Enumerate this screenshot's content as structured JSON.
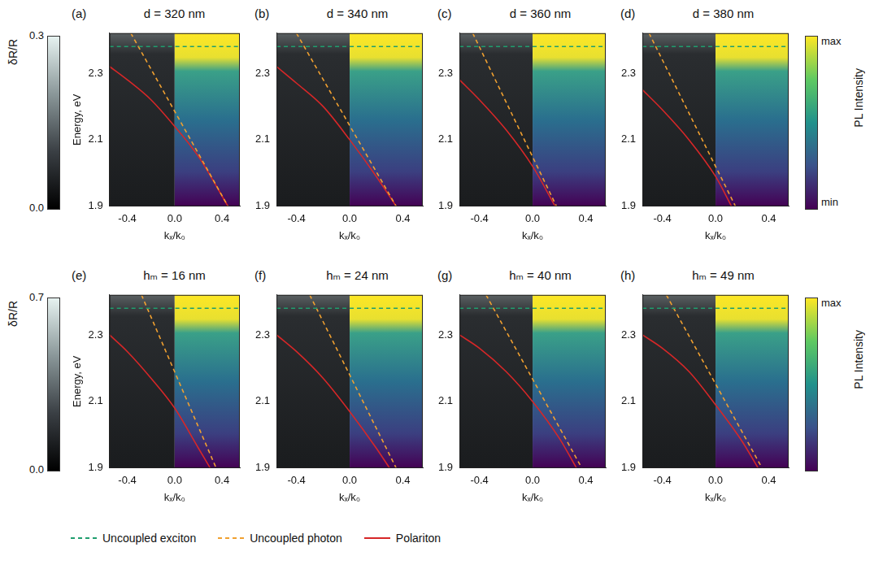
{
  "chart_data": [
    {
      "type": "line",
      "letter": "(a)",
      "title": "d = 320 nm",
      "x_label": "kₓ/k₀",
      "y_label": "Energy, eV",
      "xlim": [
        -0.55,
        0.55
      ],
      "xticks": [
        -0.4,
        {
          "value": 0,
          "label": "0.0"
        },
        0.4
      ],
      "ylim": [
        1.9,
        2.42
      ],
      "yticks": [
        1.9,
        2.1,
        2.3
      ],
      "legend": "bottom",
      "series": [
        {
          "name": "Uncoupled exciton",
          "color": "#1f9e6e",
          "line_style": "dashed",
          "x": [
            -0.55,
            0.55
          ],
          "values": [
            2.38,
            2.38
          ]
        },
        {
          "name": "Uncoupled photon",
          "color": "#f0a030",
          "line_style": "dashed",
          "x": [
            -0.37,
            0.45
          ],
          "values": [
            2.42,
            1.9
          ]
        },
        {
          "name": "Polariton",
          "color": "#d62728",
          "line_style": "solid",
          "x": [
            -0.55,
            -0.4,
            -0.2,
            0,
            0.2,
            0.45
          ],
          "values": [
            2.32,
            2.28,
            2.22,
            2.14,
            2.05,
            1.9
          ]
        }
      ]
    },
    {
      "type": "line",
      "letter": "(b)",
      "title": "d = 340 nm",
      "x_label": "kₓ/k₀",
      "xlim": [
        -0.55,
        0.55
      ],
      "xticks": [
        -0.4,
        {
          "value": 0,
          "label": "0.0"
        },
        0.4
      ],
      "ylim": [
        1.9,
        2.42
      ],
      "yticks": [
        1.9,
        2.1,
        2.3
      ],
      "legend": "bottom",
      "series": [
        {
          "name": "Uncoupled exciton",
          "color": "#1f9e6e",
          "line_style": "dashed",
          "x": [
            -0.55,
            0.55
          ],
          "values": [
            2.38,
            2.38
          ]
        },
        {
          "name": "Uncoupled photon",
          "color": "#f0a030",
          "line_style": "dashed",
          "x": [
            -0.4,
            0.35
          ],
          "values": [
            2.42,
            1.9
          ]
        },
        {
          "name": "Polariton",
          "color": "#d62728",
          "line_style": "solid",
          "x": [
            -0.55,
            -0.4,
            -0.2,
            0,
            0.2,
            0.35
          ],
          "values": [
            2.32,
            2.27,
            2.2,
            2.1,
            1.99,
            1.9
          ]
        }
      ]
    },
    {
      "type": "line",
      "letter": "(c)",
      "title": "d = 360 nm",
      "x_label": "kₓ/k₀",
      "xlim": [
        -0.55,
        0.55
      ],
      "xticks": [
        -0.4,
        {
          "value": 0,
          "label": "0.0"
        },
        0.4
      ],
      "ylim": [
        1.9,
        2.42
      ],
      "yticks": [
        1.9,
        2.1,
        2.3
      ],
      "legend": "bottom",
      "series": [
        {
          "name": "Uncoupled exciton",
          "color": "#1f9e6e",
          "line_style": "dashed",
          "x": [
            -0.55,
            0.55
          ],
          "values": [
            2.38,
            2.38
          ]
        },
        {
          "name": "Uncoupled photon",
          "color": "#f0a030",
          "line_style": "dashed",
          "x": [
            -0.45,
            0.18
          ],
          "values": [
            2.42,
            1.9
          ]
        },
        {
          "name": "Polariton",
          "color": "#d62728",
          "line_style": "solid",
          "x": [
            -0.55,
            -0.4,
            -0.2,
            0,
            0.17
          ],
          "values": [
            2.28,
            2.22,
            2.13,
            2.02,
            1.9
          ]
        }
      ]
    },
    {
      "type": "line",
      "letter": "(d)",
      "title": "d = 380 nm",
      "x_label": "kₓ/k₀",
      "xlim": [
        -0.55,
        0.55
      ],
      "xticks": [
        -0.4,
        {
          "value": 0,
          "label": "0.0"
        },
        0.4
      ],
      "ylim": [
        1.9,
        2.42
      ],
      "yticks": [
        1.9,
        2.1,
        2.3
      ],
      "legend": "bottom",
      "series": [
        {
          "name": "Uncoupled exciton",
          "color": "#1f9e6e",
          "line_style": "dashed",
          "x": [
            -0.55,
            0.55
          ],
          "values": [
            2.38,
            2.38
          ]
        },
        {
          "name": "Uncoupled photon",
          "color": "#f0a030",
          "line_style": "dashed",
          "x": [
            -0.5,
            0.15
          ],
          "values": [
            2.42,
            1.9
          ]
        },
        {
          "name": "Polariton",
          "color": "#d62728",
          "line_style": "solid",
          "x": [
            -0.55,
            -0.4,
            -0.2,
            0,
            0.12
          ],
          "values": [
            2.25,
            2.19,
            2.1,
            1.99,
            1.9
          ]
        }
      ]
    },
    {
      "type": "line",
      "letter": "(e)",
      "title": "hₘ = 16 nm",
      "x_label": "kₓ/k₀",
      "y_label": "Energy, eV",
      "xlim": [
        -0.55,
        0.55
      ],
      "xticks": [
        -0.4,
        {
          "value": 0,
          "label": "0.0"
        },
        0.4
      ],
      "ylim": [
        1.9,
        2.42
      ],
      "yticks": [
        1.9,
        2.1,
        2.3
      ],
      "legend": "bottom",
      "series": [
        {
          "name": "Uncoupled exciton",
          "color": "#1f9e6e",
          "line_style": "dashed",
          "x": [
            -0.55,
            0.55
          ],
          "values": [
            2.38,
            2.38
          ]
        },
        {
          "name": "Uncoupled photon",
          "color": "#f0a030",
          "line_style": "dashed",
          "x": [
            -0.28,
            0.35
          ],
          "values": [
            2.42,
            1.9
          ]
        },
        {
          "name": "Polariton",
          "color": "#d62728",
          "line_style": "solid",
          "x": [
            -0.55,
            -0.4,
            -0.2,
            0,
            0.2,
            0.3
          ],
          "values": [
            2.3,
            2.25,
            2.17,
            2.08,
            1.96,
            1.9
          ]
        }
      ]
    },
    {
      "type": "line",
      "letter": "(f)",
      "title": "hₘ = 24 nm",
      "x_label": "kₓ/k₀",
      "xlim": [
        -0.55,
        0.55
      ],
      "xticks": [
        -0.4,
        {
          "value": 0,
          "label": "0.0"
        },
        0.4
      ],
      "ylim": [
        1.9,
        2.42
      ],
      "yticks": [
        1.9,
        2.1,
        2.3
      ],
      "legend": "bottom",
      "series": [
        {
          "name": "Uncoupled exciton",
          "color": "#1f9e6e",
          "line_style": "dashed",
          "x": [
            -0.55,
            0.55
          ],
          "values": [
            2.38,
            2.38
          ]
        },
        {
          "name": "Uncoupled photon",
          "color": "#f0a030",
          "line_style": "dashed",
          "x": [
            -0.3,
            0.35
          ],
          "values": [
            2.42,
            1.9
          ]
        },
        {
          "name": "Polariton",
          "color": "#d62728",
          "line_style": "solid",
          "x": [
            -0.55,
            -0.4,
            -0.2,
            0,
            0.2,
            0.3
          ],
          "values": [
            2.3,
            2.25,
            2.17,
            2.07,
            1.96,
            1.9
          ]
        }
      ]
    },
    {
      "type": "line",
      "letter": "(g)",
      "title": "hₘ = 40 nm",
      "x_label": "kₓ/k₀",
      "xlim": [
        -0.55,
        0.55
      ],
      "xticks": [
        -0.4,
        {
          "value": 0,
          "label": "0.0"
        },
        0.4
      ],
      "ylim": [
        1.9,
        2.42
      ],
      "yticks": [
        1.9,
        2.1,
        2.3
      ],
      "legend": "bottom",
      "series": [
        {
          "name": "Uncoupled exciton",
          "color": "#1f9e6e",
          "line_style": "dashed",
          "x": [
            -0.55,
            0.55
          ],
          "values": [
            2.38,
            2.38
          ]
        },
        {
          "name": "Uncoupled photon",
          "color": "#f0a030",
          "line_style": "dashed",
          "x": [
            -0.35,
            0.37
          ],
          "values": [
            2.42,
            1.9
          ]
        },
        {
          "name": "Polariton",
          "color": "#d62728",
          "line_style": "solid",
          "x": [
            -0.55,
            -0.4,
            -0.2,
            0,
            0.2,
            0.33
          ],
          "values": [
            2.3,
            2.26,
            2.19,
            2.1,
            1.99,
            1.9
          ]
        }
      ]
    },
    {
      "type": "line",
      "letter": "(h)",
      "title": "hₘ = 49 nm",
      "x_label": "kₓ/k₀",
      "xlim": [
        -0.55,
        0.55
      ],
      "xticks": [
        -0.4,
        {
          "value": 0,
          "label": "0.0"
        },
        0.4
      ],
      "ylim": [
        1.9,
        2.42
      ],
      "yticks": [
        1.9,
        2.1,
        2.3
      ],
      "legend": "bottom",
      "series": [
        {
          "name": "Uncoupled exciton",
          "color": "#1f9e6e",
          "line_style": "dashed",
          "x": [
            -0.55,
            0.55
          ],
          "values": [
            2.38,
            2.38
          ]
        },
        {
          "name": "Uncoupled photon",
          "color": "#f0a030",
          "line_style": "dashed",
          "x": [
            -0.37,
            0.35
          ],
          "values": [
            2.42,
            1.9
          ]
        },
        {
          "name": "Polariton",
          "color": "#d62728",
          "line_style": "solid",
          "x": [
            -0.55,
            -0.4,
            -0.2,
            0,
            0.2,
            0.32
          ],
          "values": [
            2.3,
            2.26,
            2.19,
            2.09,
            1.98,
            1.9
          ]
        }
      ]
    }
  ],
  "colorbars": [
    {
      "row": 1,
      "left": {
        "title": "δR/R",
        "range": [
          0,
          0.3
        ],
        "ticks": [
          {
            "value": 0,
            "label": "0.0"
          },
          0.3
        ]
      },
      "right": {
        "title": "PL Intensity",
        "labels": [
          "max",
          "min"
        ]
      }
    },
    {
      "row": 2,
      "left": {
        "title": "δR/R",
        "range": [
          0,
          0.7
        ],
        "ticks": [
          {
            "value": 0,
            "label": "0.0"
          },
          0.7
        ]
      },
      "right": {
        "title": "PL Intensity",
        "labels": [
          "max"
        ]
      }
    }
  ]
}
